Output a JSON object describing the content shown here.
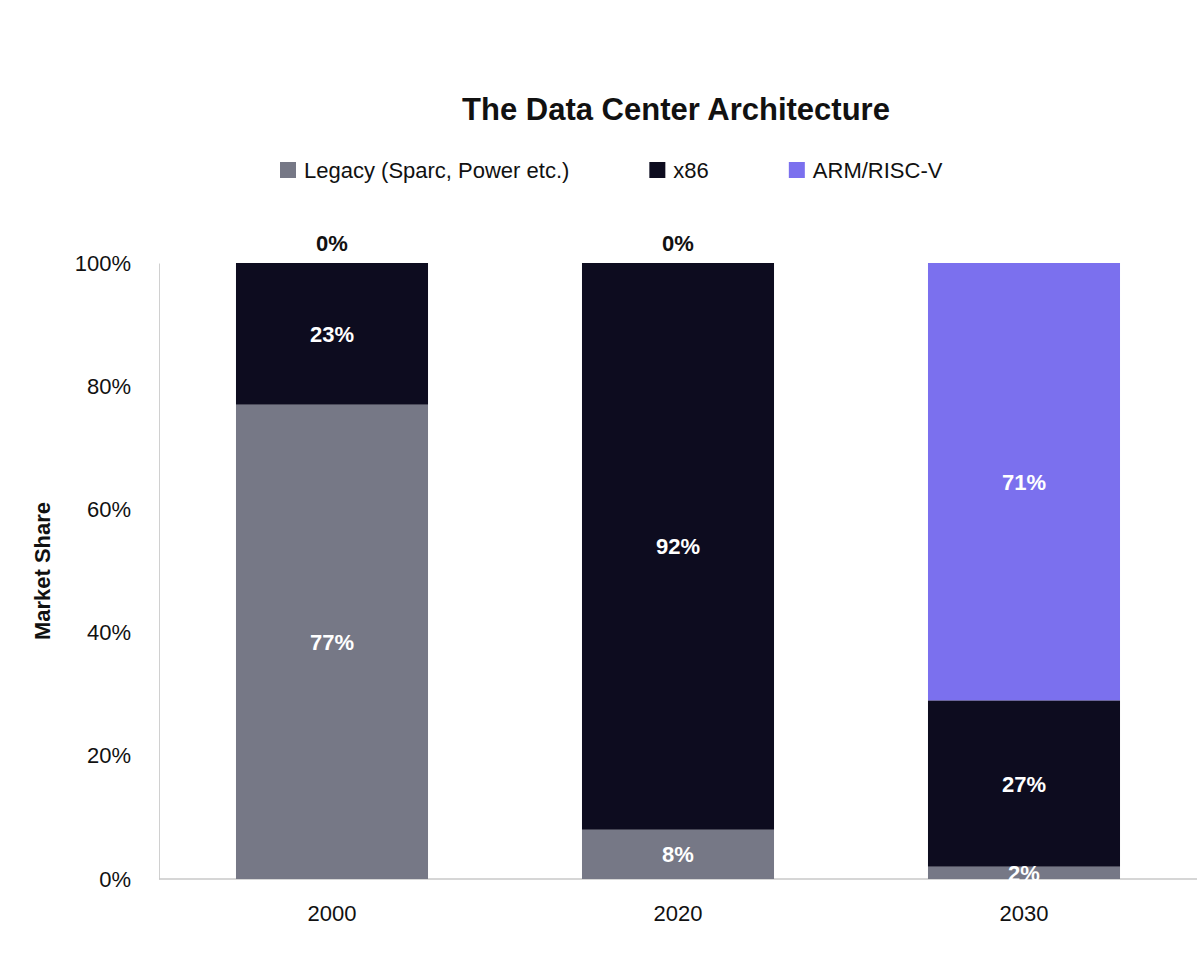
{
  "chart_data": {
    "type": "bar",
    "title": "The Data Center Architecture",
    "y_label": "Market Share",
    "categories": [
      "2000",
      "2020",
      "2030"
    ],
    "series": [
      {
        "name": "Legacy (Sparc, Power etc.)",
        "color": "#767886",
        "values": [
          77,
          8,
          2
        ],
        "value_labels": [
          "77%",
          "8%",
          "2%"
        ]
      },
      {
        "name": "x86",
        "color": "#0d0c1f",
        "values": [
          23,
          92,
          27
        ],
        "value_labels": [
          "23%",
          "92%",
          "27%"
        ]
      },
      {
        "name": "ARM/RISC-V",
        "color": "#7b70ee",
        "values": [
          0,
          0,
          71
        ],
        "value_labels": [
          "0%",
          "0%",
          "71%"
        ]
      }
    ],
    "ylim": [
      0,
      100
    ],
    "yticks": [
      {
        "value": 0,
        "label": "0%"
      },
      {
        "value": 20,
        "label": "20%"
      },
      {
        "value": 40,
        "label": "40%"
      },
      {
        "value": 60,
        "label": "60%"
      },
      {
        "value": 80,
        "label": "80%"
      },
      {
        "value": 100,
        "label": "100%"
      }
    ],
    "stacked": true,
    "data_labels": true,
    "legend": "top",
    "grid": false
  }
}
